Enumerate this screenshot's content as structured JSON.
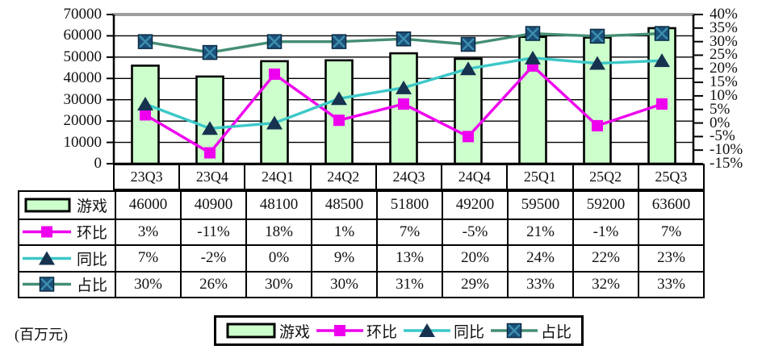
{
  "unit_label": "(百万元)",
  "chart_data": {
    "type": "combo-bar-line",
    "categories": [
      "23Q3",
      "23Q4",
      "24Q1",
      "24Q2",
      "24Q3",
      "24Q4",
      "25Q1",
      "25Q2",
      "25Q3"
    ],
    "bar_series": {
      "name": "游戏",
      "axis": "left",
      "values": [
        46000,
        40900,
        48100,
        48500,
        51800,
        49200,
        59500,
        59200,
        63600
      ]
    },
    "line_series": [
      {
        "name": "环比",
        "axis": "right",
        "values": [
          3,
          -11,
          18,
          1,
          7,
          -5,
          21,
          -1,
          7
        ],
        "color": "#EE00EE",
        "marker": "square",
        "marker_color": "#EE00EE"
      },
      {
        "name": "同比",
        "axis": "right",
        "values": [
          7,
          -2,
          0,
          9,
          13,
          20,
          24,
          22,
          23
        ],
        "color": "#3CC7C7",
        "marker": "triangle",
        "marker_color": "#16324F"
      },
      {
        "name": "占比",
        "axis": "right",
        "values": [
          30,
          26,
          30,
          30,
          31,
          29,
          33,
          32,
          33
        ],
        "color": "#448E74",
        "marker": "x-square",
        "marker_color": "#1B507A",
        "marker_x_color": "#3D8FAE"
      }
    ],
    "bar_color": "#CCFFCC",
    "bar_border_color": "#000000",
    "grid_color": "#000000",
    "top_border_color": "#9E9E9E",
    "left_axis": {
      "min": 0,
      "max": 70000,
      "step": 10000,
      "ticks": [
        "70000",
        "60000",
        "50000",
        "40000",
        "30000",
        "20000",
        "10000",
        "0"
      ]
    },
    "right_axis": {
      "min": -15,
      "max": 40,
      "step": 5,
      "ticks": [
        "40%",
        "35%",
        "30%",
        "25%",
        "20%",
        "15%",
        "10%",
        "5%",
        "0%",
        "-5%",
        "-10%",
        "-15%"
      ]
    },
    "grid": true,
    "legend_position": "bottom"
  },
  "table": {
    "rows": [
      {
        "key": "games",
        "label": "游戏",
        "swatch": "bar-swatch",
        "values": [
          "46000",
          "40900",
          "48100",
          "48500",
          "51800",
          "49200",
          "59500",
          "59200",
          "63600"
        ]
      },
      {
        "key": "qoq",
        "label": "环比",
        "swatch": "qoq-line-swatch",
        "values": [
          "3%",
          "-11%",
          "18%",
          "1%",
          "7%",
          "-5%",
          "21%",
          "-1%",
          "7%"
        ]
      },
      {
        "key": "yoy",
        "label": "同比",
        "swatch": "yoy-line-swatch",
        "values": [
          "7%",
          "-2%",
          "0%",
          "9%",
          "13%",
          "20%",
          "24%",
          "22%",
          "23%"
        ]
      },
      {
        "key": "share",
        "label": "占比",
        "swatch": "share-line-swatch",
        "values": [
          "30%",
          "26%",
          "30%",
          "30%",
          "31%",
          "29%",
          "33%",
          "32%",
          "33%"
        ]
      }
    ]
  },
  "legend": {
    "items": [
      {
        "key": "games",
        "label": "游戏",
        "swatch": "bar-swatch"
      },
      {
        "key": "qoq",
        "label": "环比",
        "swatch": "qoq-line-swatch"
      },
      {
        "key": "yoy",
        "label": "同比",
        "swatch": "yoy-line-swatch"
      },
      {
        "key": "share",
        "label": "占比",
        "swatch": "share-line-swatch"
      }
    ]
  }
}
